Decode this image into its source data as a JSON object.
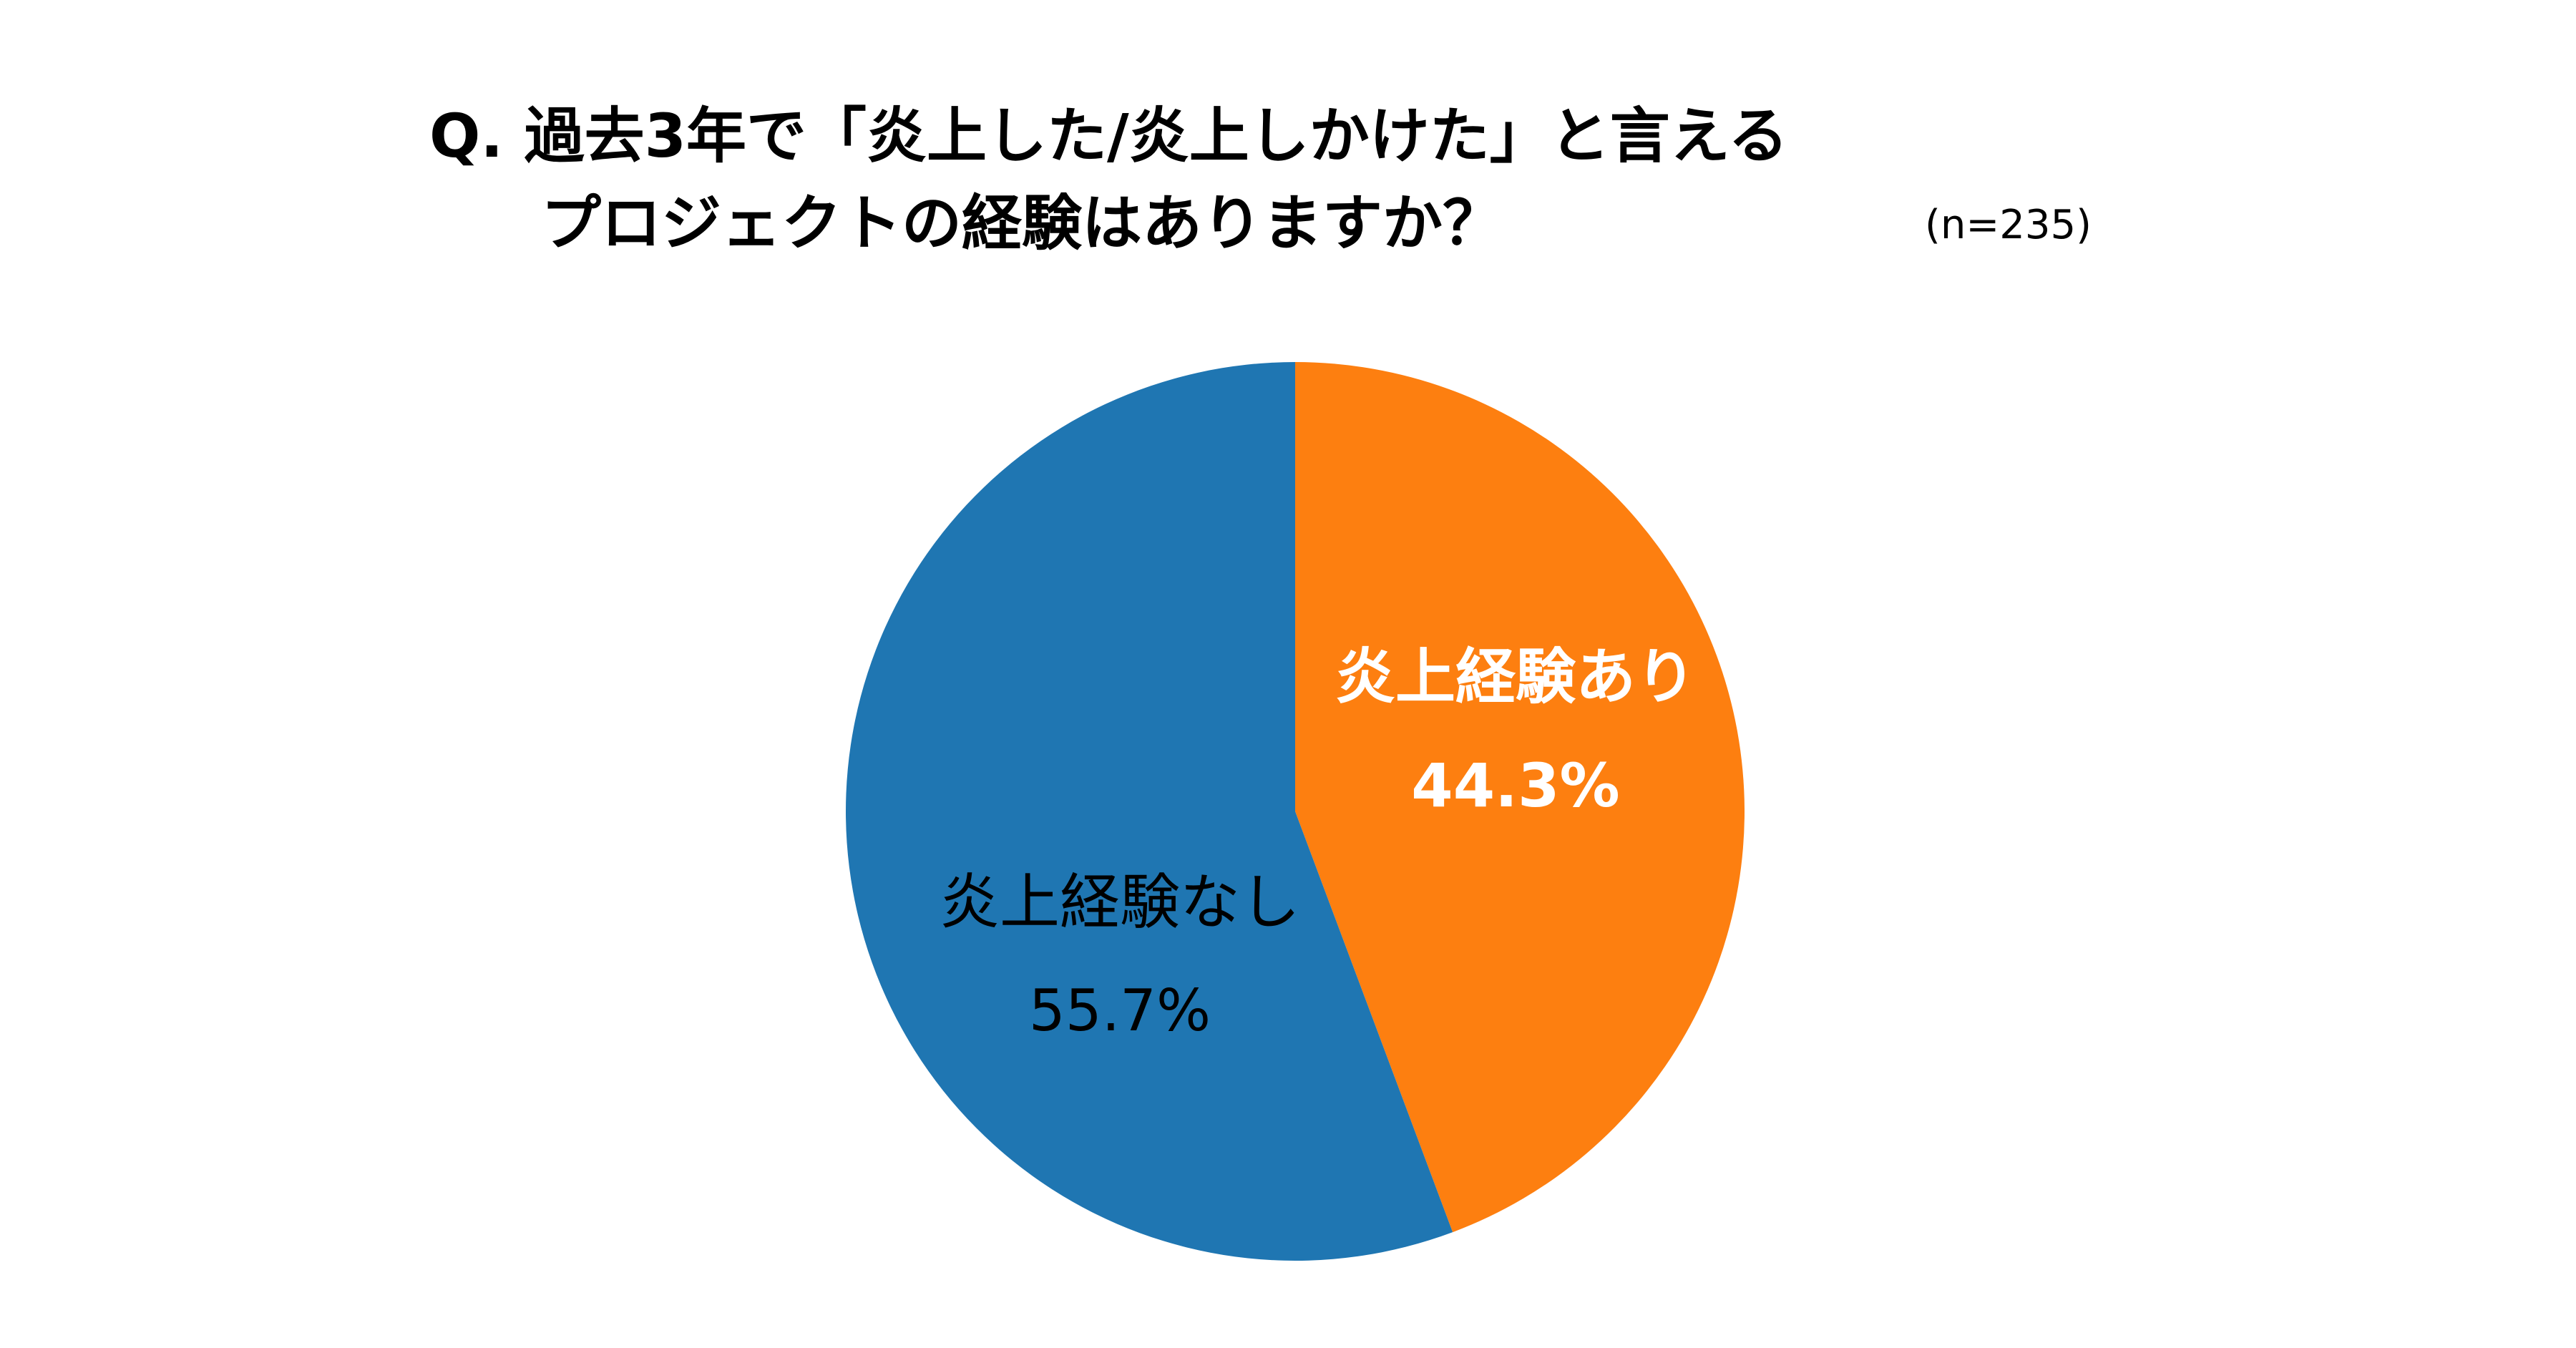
{
  "title": {
    "line1": "Q.  過去3年で「炎上した/炎上しかけた」と言える",
    "line2": "プロジェクトの経験はありますか？",
    "sample_size": "(n=235)"
  },
  "chart_data": {
    "type": "pie",
    "start_angle": "12 o'clock",
    "direction": "clockwise",
    "slices": [
      {
        "label": "炎上経験あり",
        "value": 44.3,
        "value_label": "44.3%",
        "color": "#fd7f10",
        "text_color": "#ffffff"
      },
      {
        "label": "炎上経験なし",
        "value": 55.7,
        "value_label": "55.7%",
        "color": "#1f76b2",
        "text_color": "#000000"
      }
    ]
  }
}
